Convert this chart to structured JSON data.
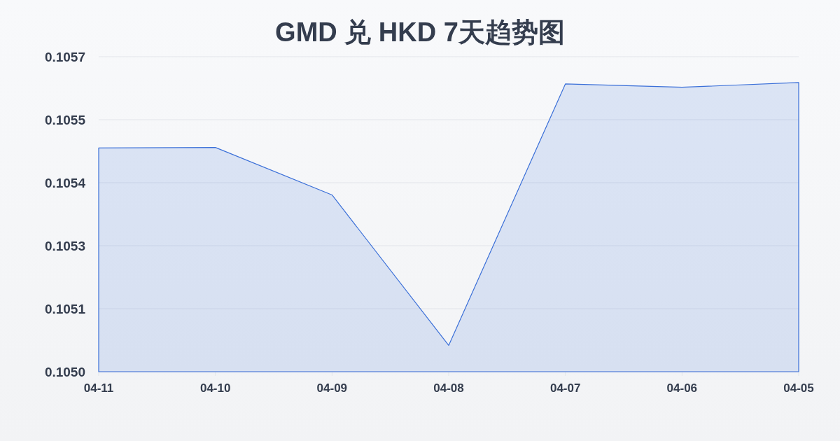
{
  "chart_data": {
    "type": "area",
    "title": "GMD 兑 HKD 7天趋势图",
    "categories": [
      "04-11",
      "04-10",
      "04-09",
      "04-08",
      "04-07",
      "04-06",
      "04-05"
    ],
    "series": [
      {
        "color": "#3a6fd8",
        "values": [
          0.105476,
          0.105477,
          0.105376,
          0.105056,
          0.105612,
          0.105605,
          0.105615
        ]
      }
    ],
    "ylim": [
      0.105,
      0.10567
    ],
    "yticks": [
      {
        "value": 0.105,
        "label": "0.1050"
      },
      {
        "value": 0.105134,
        "label": "0.1051"
      },
      {
        "value": 0.105268,
        "label": "0.1053"
      },
      {
        "value": 0.105402,
        "label": "0.1054"
      },
      {
        "value": 0.105536,
        "label": "0.1055"
      },
      {
        "value": 0.10567,
        "label": "0.1057"
      }
    ],
    "grid": "y"
  }
}
